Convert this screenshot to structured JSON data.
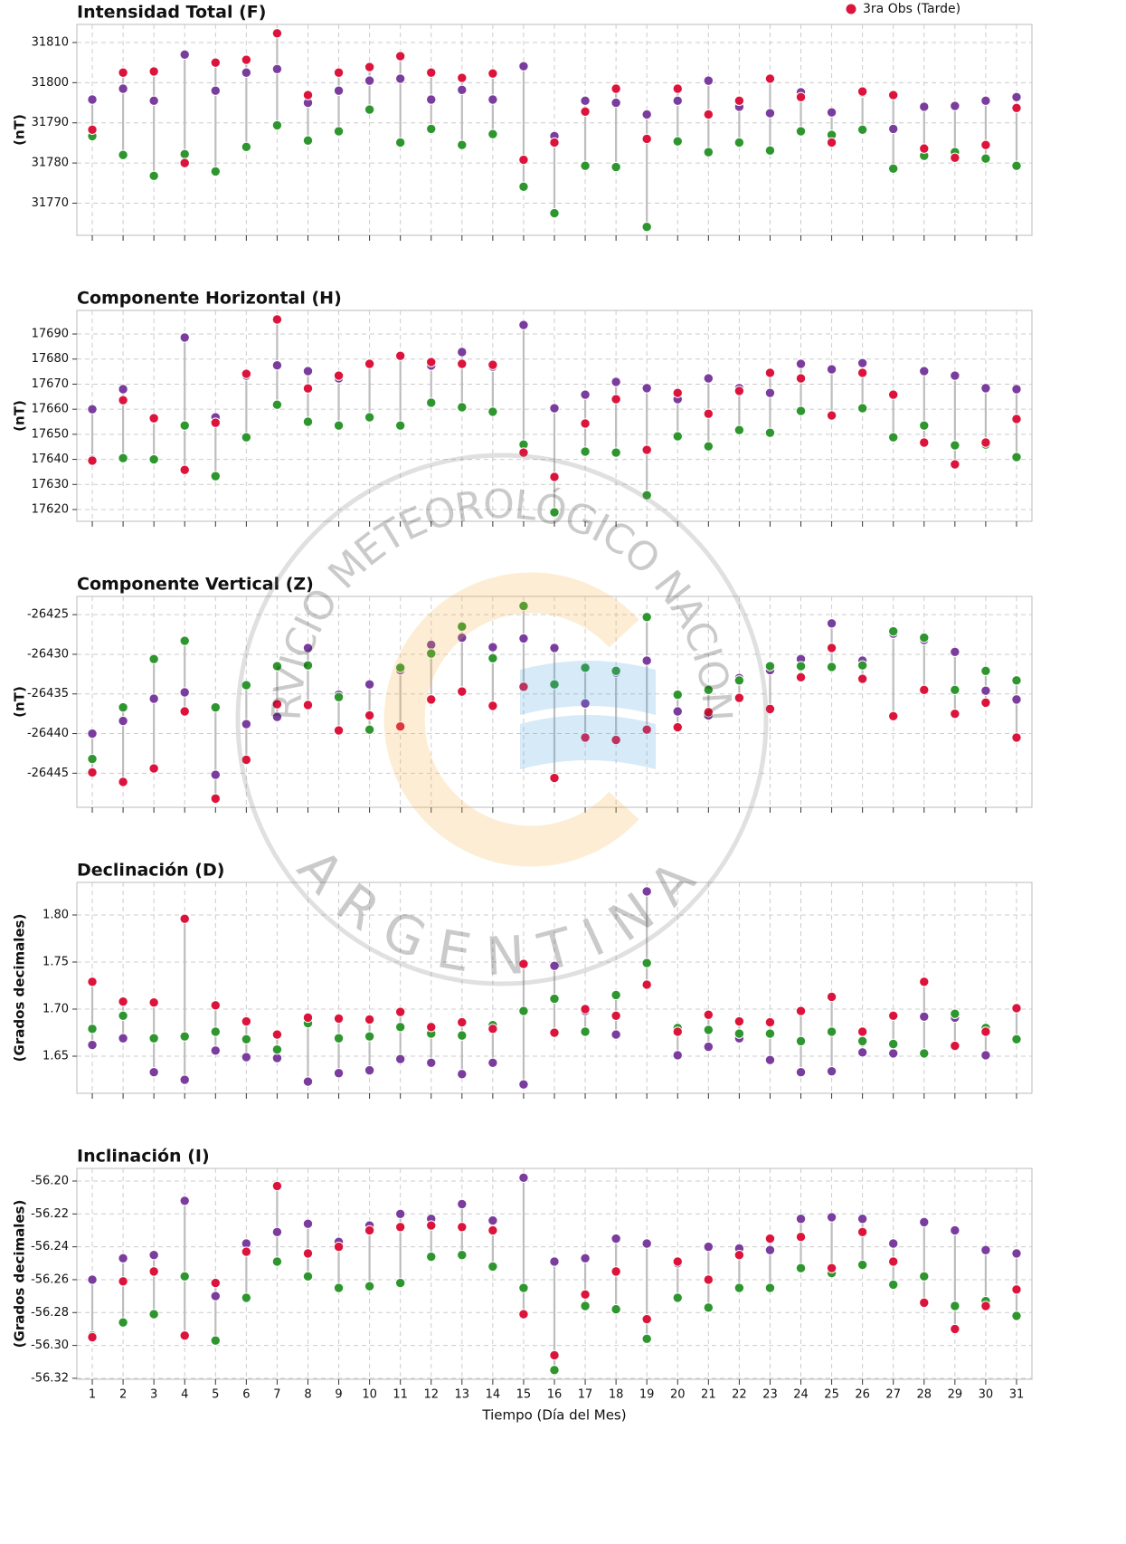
{
  "watermark": {
    "top": "SERVICIO METEOROLÓGICO NACIONAL",
    "bottom": "ARGENTINA"
  },
  "chart_data": [
    {
      "type": "scatter",
      "title": "Intensidad Total (F)",
      "ylabel": "(nT)",
      "grid": true,
      "legend": "upper right",
      "show_xticklabels": false,
      "x": [
        1,
        2,
        3,
        4,
        5,
        6,
        7,
        8,
        9,
        10,
        11,
        12,
        13,
        14,
        15,
        16,
        17,
        18,
        19,
        20,
        21,
        22,
        23,
        24,
        25,
        26,
        27,
        28,
        29,
        30,
        31
      ],
      "xlim": [
        0.5,
        31.5
      ],
      "xticks": [
        1,
        2,
        3,
        4,
        5,
        6,
        7,
        8,
        9,
        10,
        11,
        12,
        13,
        14,
        15,
        16,
        17,
        18,
        19,
        20,
        21,
        22,
        23,
        24,
        25,
        26,
        27,
        28,
        29,
        30,
        31
      ],
      "ylim": [
        31762,
        31814.5
      ],
      "yticks": [
        31770,
        31780,
        31790,
        31800,
        31810
      ],
      "series": [
        {
          "color": "#7a3d9e",
          "values": [
            31795.8,
            31798.5,
            31795.5,
            31807,
            31798,
            31802.5,
            31803.4,
            31795,
            31798,
            31800.5,
            31801,
            31795.8,
            31798.2,
            31795.8,
            31804.1,
            31786.7,
            31795.5,
            31795,
            31792.1,
            31795.5,
            31800.5,
            31794,
            31792.4,
            31797.6,
            31792.6,
            31797.5,
            31788.5,
            31794,
            31794.2,
            31795.5,
            31796.4
          ]
        },
        {
          "color": "#2e962e",
          "values": [
            31786.7,
            31782,
            31776.8,
            31782.2,
            31777.9,
            31784,
            31789.4,
            31785.6,
            31787.9,
            31793.3,
            31785.1,
            31788.5,
            31784.5,
            31787.2,
            31774.1,
            31767.5,
            31779.3,
            31779,
            31764.1,
            31785.4,
            31782.7,
            31785.1,
            31783.1,
            31787.9,
            31787,
            31788.3,
            31778.6,
            31781.8,
            31782.7,
            31781.1,
            31779.3
          ]
        },
        {
          "name": "3ra Obs (Tarde)",
          "color": "#dc143c",
          "values": [
            31788.3,
            31802.5,
            31802.8,
            31780,
            31805,
            31805.7,
            31812.3,
            31796.9,
            31802.5,
            31803.9,
            31806.6,
            31802.5,
            31801.2,
            31802.3,
            31780.8,
            31785.1,
            31792.8,
            31798.5,
            31786,
            31798.5,
            31792.1,
            31795.5,
            31801,
            31796.4,
            31785.1,
            31797.8,
            31796.9,
            31783.6,
            31781.3,
            31784.5,
            31793.7
          ]
        }
      ]
    },
    {
      "type": "scatter",
      "title": "Componente Horizontal (H)",
      "ylabel": "(nT)",
      "grid": true,
      "show_xticklabels": false,
      "x": [
        1,
        2,
        3,
        4,
        5,
        6,
        7,
        8,
        9,
        10,
        11,
        12,
        13,
        14,
        15,
        16,
        17,
        18,
        19,
        20,
        21,
        22,
        23,
        24,
        25,
        26,
        27,
        28,
        29,
        30,
        31
      ],
      "xlim": [
        0.5,
        31.5
      ],
      "xticks": [
        1,
        2,
        3,
        4,
        5,
        6,
        7,
        8,
        9,
        10,
        11,
        12,
        13,
        14,
        15,
        16,
        17,
        18,
        19,
        20,
        21,
        22,
        23,
        24,
        25,
        26,
        27,
        28,
        29,
        30,
        31
      ],
      "ylim": [
        17615.3,
        17699.4
      ],
      "yticks": [
        17620,
        17630,
        17640,
        17650,
        17660,
        17670,
        17680,
        17690
      ],
      "series": [
        {
          "color": "#7a3d9e",
          "values": [
            17660,
            17668,
            17656.2,
            17688.6,
            17656.8,
            17673.4,
            17677.5,
            17675.2,
            17672.3,
            17678.1,
            17681.3,
            17677.4,
            17682.8,
            17677,
            17693.6,
            17660.4,
            17665.8,
            17670.9,
            17668.4,
            17664,
            17672.3,
            17668.4,
            17666.5,
            17678.1,
            17675.9,
            17678.4,
            17666.2,
            17675.2,
            17673.4,
            17668.4,
            17668
          ]
        },
        {
          "color": "#2e962e",
          "values": [
            17640,
            17640.5,
            17640,
            17653.5,
            17633.3,
            17648.8,
            17661.8,
            17655,
            17653.5,
            17656.8,
            17653.5,
            17662.6,
            17660.8,
            17659,
            17645.9,
            17618.9,
            17643.1,
            17642.7,
            17625.7,
            17649.2,
            17645.2,
            17651.7,
            17650.6,
            17659.3,
            17657.2,
            17660.4,
            17648.8,
            17653.5,
            17645.6,
            17645.9,
            17640.9
          ]
        },
        {
          "name": "3ra Obs (Tarde)",
          "color": "#dc143c",
          "values": [
            17639.5,
            17663.6,
            17656.4,
            17635.8,
            17654.6,
            17674.1,
            17695.8,
            17668.3,
            17673.4,
            17678.1,
            17681.3,
            17678.8,
            17678.1,
            17677.7,
            17642.7,
            17633,
            17654.3,
            17664,
            17643.8,
            17666.5,
            17658.2,
            17667.3,
            17674.5,
            17672.3,
            17657.5,
            17674.5,
            17665.8,
            17646.7,
            17638,
            17646.7,
            17656.1
          ]
        }
      ]
    },
    {
      "type": "scatter",
      "title": "Componente Vertical (Z)",
      "ylabel": "(nT)",
      "grid": true,
      "show_xticklabels": false,
      "x": [
        1,
        2,
        3,
        4,
        5,
        6,
        7,
        8,
        9,
        10,
        11,
        12,
        13,
        14,
        15,
        16,
        17,
        18,
        19,
        20,
        21,
        22,
        23,
        24,
        25,
        26,
        27,
        28,
        29,
        30,
        31
      ],
      "xlim": [
        0.5,
        31.5
      ],
      "xticks": [
        1,
        2,
        3,
        4,
        5,
        6,
        7,
        8,
        9,
        10,
        11,
        12,
        13,
        14,
        15,
        16,
        17,
        18,
        19,
        20,
        21,
        22,
        23,
        24,
        25,
        26,
        27,
        28,
        29,
        30,
        31
      ],
      "ylim": [
        -26449.3,
        -26422.7
      ],
      "yticks": [
        -26445,
        -26440,
        -26435,
        -26430,
        -26425
      ],
      "series": [
        {
          "color": "#7a3d9e",
          "values": [
            -26440,
            -26438.4,
            -26435.6,
            -26434.8,
            -26445.2,
            -26438.8,
            -26437.9,
            -26429.2,
            -26435.1,
            -26433.8,
            -26432,
            -26428.8,
            -26427.9,
            -26429.1,
            -26428,
            -26429.2,
            -26436.2,
            -26432.3,
            -26430.8,
            -26437.2,
            -26437.7,
            -26433,
            -26432,
            -26430.6,
            -26426.1,
            -26430.8,
            -26427.4,
            -26428.2,
            -26429.7,
            -26434.6,
            -26435.7
          ]
        },
        {
          "color": "#2e962e",
          "values": [
            -26443.2,
            -26436.7,
            -26430.6,
            -26428.3,
            -26436.7,
            -26433.9,
            -26431.5,
            -26431.4,
            -26435.4,
            -26439.5,
            -26431.7,
            -26429.9,
            -26426.5,
            -26430.5,
            -26423.9,
            -26433.8,
            -26431.7,
            -26432.1,
            -26425.3,
            -26435.1,
            -26434.5,
            -26433.3,
            -26431.5,
            -26431.5,
            -26431.6,
            -26431.4,
            -26427.1,
            -26427.9,
            -26434.5,
            -26432.1,
            -26433.3
          ]
        },
        {
          "name": "3ra Obs (Tarde)",
          "color": "#dc143c",
          "values": [
            -26444.9,
            -26446.1,
            -26444.4,
            -26437.2,
            -26448.2,
            -26443.3,
            -26436.3,
            -26436.4,
            -26439.6,
            -26437.7,
            -26439.1,
            -26435.7,
            -26434.7,
            -26436.5,
            -26434.1,
            -26445.6,
            -26440.5,
            -26440.8,
            -26439.5,
            -26439.2,
            -26437.3,
            -26435.5,
            -26436.9,
            -26432.9,
            -26429.2,
            -26433.1,
            -26437.8,
            -26434.5,
            -26437.5,
            -26436.1,
            -26440.5
          ]
        }
      ]
    },
    {
      "type": "scatter",
      "title": "Declinación (D)",
      "ylabel": "(Grados decimales)",
      "grid": true,
      "show_xticklabels": false,
      "x": [
        1,
        2,
        3,
        4,
        5,
        6,
        7,
        8,
        9,
        10,
        11,
        12,
        13,
        14,
        15,
        16,
        17,
        18,
        19,
        20,
        21,
        22,
        23,
        24,
        25,
        26,
        27,
        28,
        29,
        30,
        31
      ],
      "xlim": [
        0.5,
        31.5
      ],
      "xticks": [
        1,
        2,
        3,
        4,
        5,
        6,
        7,
        8,
        9,
        10,
        11,
        12,
        13,
        14,
        15,
        16,
        17,
        18,
        19,
        20,
        21,
        22,
        23,
        24,
        25,
        26,
        27,
        28,
        29,
        30,
        31
      ],
      "ylim": [
        1.6106,
        1.8346
      ],
      "yticks": [
        1.65,
        {
          "value": 1.7,
          "label": "1.70"
        },
        1.75,
        {
          "value": 1.8,
          "label": "1.80"
        }
      ],
      "series": [
        {
          "color": "#7a3d9e",
          "values": [
            1.662,
            1.669,
            1.633,
            1.625,
            1.656,
            1.649,
            1.648,
            1.623,
            1.632,
            1.635,
            1.647,
            1.643,
            1.631,
            1.643,
            1.62,
            1.746,
            1.698,
            1.673,
            1.825,
            1.651,
            1.66,
            1.669,
            1.646,
            1.633,
            1.634,
            1.654,
            1.653,
            1.692,
            1.691,
            1.651,
            1.668
          ]
        },
        {
          "color": "#2e962e",
          "values": [
            1.679,
            1.693,
            1.669,
            1.671,
            1.676,
            1.668,
            1.657,
            1.685,
            1.669,
            1.671,
            1.681,
            1.674,
            1.672,
            1.683,
            1.698,
            1.711,
            1.676,
            1.715,
            1.749,
            1.68,
            1.678,
            1.674,
            1.674,
            1.666,
            1.676,
            1.666,
            1.663,
            1.653,
            1.695,
            1.68,
            1.668
          ]
        },
        {
          "name": "3ra Obs (Tarde)",
          "color": "#dc143c",
          "values": [
            1.729,
            1.708,
            1.707,
            1.796,
            1.704,
            1.687,
            1.673,
            1.691,
            1.69,
            1.689,
            1.697,
            1.681,
            1.686,
            1.679,
            1.748,
            1.675,
            1.7,
            1.693,
            1.726,
            1.676,
            1.694,
            1.687,
            1.686,
            1.698,
            1.713,
            1.676,
            1.693,
            1.729,
            1.661,
            1.676,
            1.701
          ]
        }
      ]
    },
    {
      "type": "scatter",
      "title": "Inclinación (I)",
      "ylabel": "(Grados decimales)",
      "xlabel": "Tiempo (Día del Mes)",
      "grid": true,
      "show_xticklabels": true,
      "x": [
        1,
        2,
        3,
        4,
        5,
        6,
        7,
        8,
        9,
        10,
        11,
        12,
        13,
        14,
        15,
        16,
        17,
        18,
        19,
        20,
        21,
        22,
        23,
        24,
        25,
        26,
        27,
        28,
        29,
        30,
        31
      ],
      "xlim": [
        0.5,
        31.5
      ],
      "xticks": [
        1,
        2,
        3,
        4,
        5,
        6,
        7,
        8,
        9,
        10,
        11,
        12,
        13,
        14,
        15,
        16,
        17,
        18,
        19,
        20,
        21,
        22,
        23,
        24,
        25,
        26,
        27,
        28,
        29,
        30,
        31
      ],
      "ylim": [
        -56.3206,
        -56.1923
      ],
      "yticks": [
        -56.32,
        {
          "value": -56.3,
          "label": "-56.30"
        },
        -56.28,
        -56.26,
        -56.24,
        -56.22,
        {
          "value": -56.2,
          "label": "-56.20"
        }
      ],
      "series": [
        {
          "color": "#7a3d9e",
          "values": [
            -56.26,
            -56.247,
            -56.245,
            -56.212,
            -56.27,
            -56.238,
            -56.231,
            -56.226,
            -56.237,
            -56.227,
            -56.22,
            -56.223,
            -56.214,
            -56.224,
            -56.198,
            -56.249,
            -56.247,
            -56.235,
            -56.238,
            -56.25,
            -56.24,
            -56.241,
            -56.242,
            -56.223,
            -56.222,
            -56.223,
            -56.238,
            -56.225,
            -56.23,
            -56.242,
            -56.244
          ]
        },
        {
          "color": "#2e962e",
          "values": [
            -56.294,
            -56.286,
            -56.281,
            -56.258,
            -56.297,
            -56.271,
            -56.249,
            -56.258,
            -56.265,
            -56.264,
            -56.262,
            -56.246,
            -56.245,
            -56.252,
            -56.265,
            -56.315,
            -56.276,
            -56.278,
            -56.296,
            -56.271,
            -56.277,
            -56.265,
            -56.265,
            -56.253,
            -56.256,
            -56.251,
            -56.263,
            -56.258,
            -56.276,
            -56.273,
            -56.282
          ]
        },
        {
          "name": "3ra Obs (Tarde)",
          "color": "#dc143c",
          "values": [
            -56.295,
            -56.261,
            -56.255,
            -56.294,
            -56.262,
            -56.243,
            -56.203,
            -56.244,
            -56.24,
            -56.23,
            -56.228,
            -56.227,
            -56.228,
            -56.23,
            -56.281,
            -56.306,
            -56.269,
            -56.255,
            -56.284,
            -56.249,
            -56.26,
            -56.245,
            -56.235,
            -56.234,
            -56.253,
            -56.231,
            -56.249,
            -56.274,
            -56.29,
            -56.276,
            -56.266
          ]
        }
      ]
    }
  ]
}
